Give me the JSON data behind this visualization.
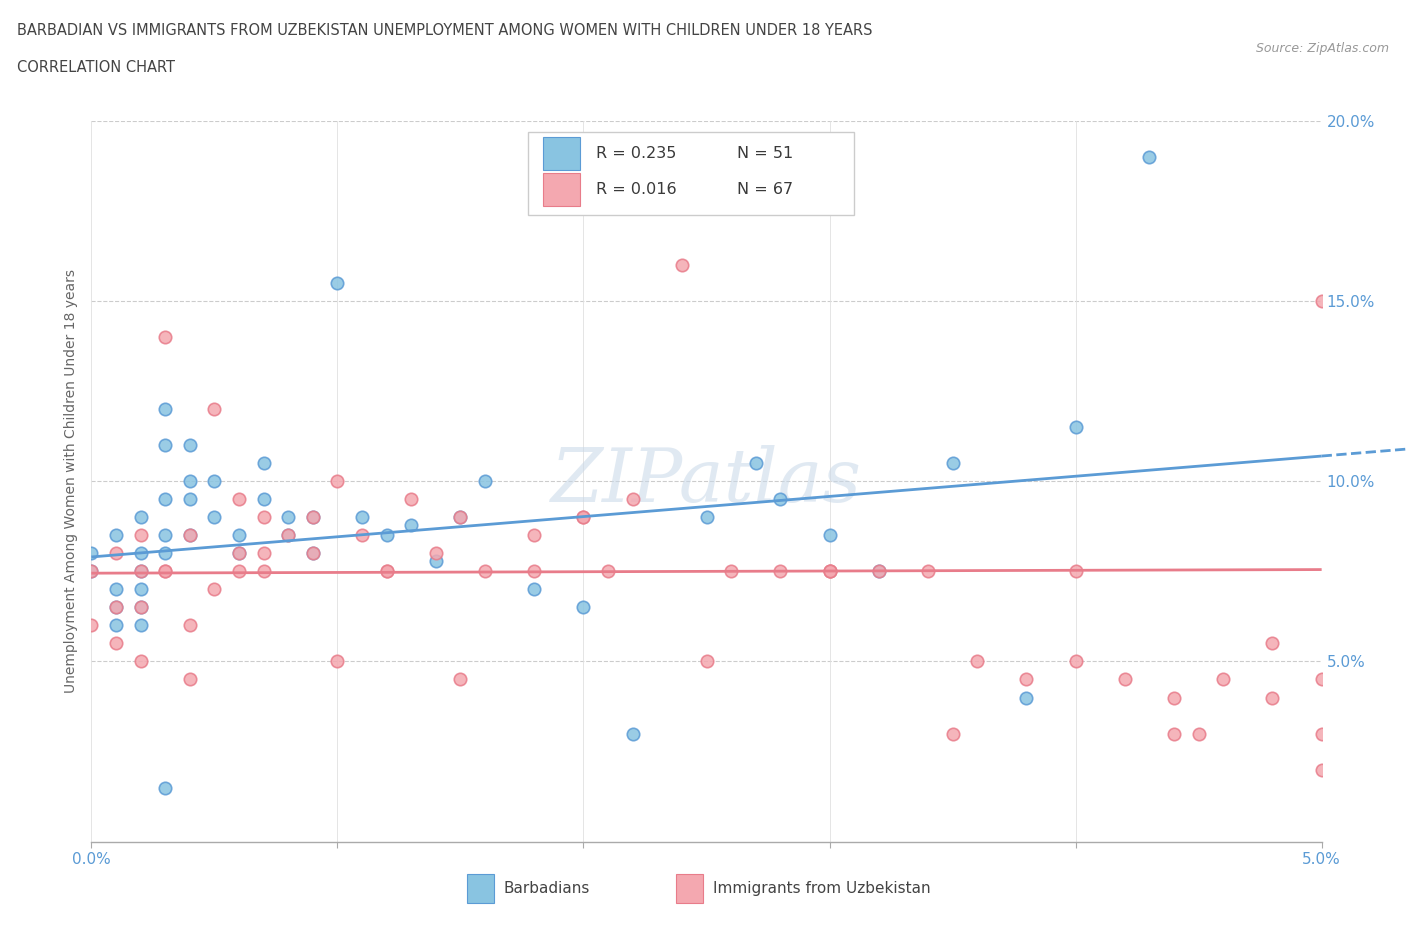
{
  "title_line1": "BARBADIAN VS IMMIGRANTS FROM UZBEKISTAN UNEMPLOYMENT AMONG WOMEN WITH CHILDREN UNDER 18 YEARS",
  "title_line2": "CORRELATION CHART",
  "source": "Source: ZipAtlas.com",
  "ylabel": "Unemployment Among Women with Children Under 18 years",
  "xlim": [
    0.0,
    0.05
  ],
  "ylim": [
    0.0,
    0.2
  ],
  "yticks": [
    0.0,
    0.05,
    0.1,
    0.15,
    0.2
  ],
  "ytick_labels": [
    "",
    "5.0%",
    "10.0%",
    "15.0%",
    "20.0%"
  ],
  "xticks": [
    0.0,
    0.01,
    0.02,
    0.03,
    0.04,
    0.05
  ],
  "xtick_labels": [
    "0.0%",
    "",
    "",
    "",
    "",
    "5.0%"
  ],
  "color_barbadian": "#89c4e1",
  "color_uzbekistan": "#f4a8b0",
  "color_barbadian_edge": "#5b9bd5",
  "color_uzbekistan_edge": "#e87c8a",
  "legend_R_barbadian": "R = 0.235",
  "legend_N_barbadian": "N = 51",
  "legend_R_uzbekistan": "R = 0.016",
  "legend_N_uzbekistan": "N = 67",
  "legend_label_barbadian": "Barbadians",
  "legend_label_uzbekistan": "Immigrants from Uzbekistan",
  "watermark": "ZIPatlas",
  "trend_blue_x0": 0.0,
  "trend_blue_x1": 0.05,
  "trend_blue_y0": 0.079,
  "trend_blue_y1": 0.107,
  "trend_pink_x0": 0.0,
  "trend_pink_x1": 0.05,
  "trend_pink_y0": 0.0745,
  "trend_pink_y1": 0.0755,
  "barbadian_x": [
    0.0,
    0.0,
    0.001,
    0.001,
    0.001,
    0.001,
    0.002,
    0.002,
    0.002,
    0.002,
    0.002,
    0.002,
    0.003,
    0.003,
    0.003,
    0.003,
    0.003,
    0.004,
    0.004,
    0.004,
    0.004,
    0.005,
    0.005,
    0.006,
    0.006,
    0.007,
    0.007,
    0.008,
    0.008,
    0.009,
    0.009,
    0.01,
    0.011,
    0.012,
    0.013,
    0.014,
    0.015,
    0.016,
    0.018,
    0.02,
    0.022,
    0.025,
    0.027,
    0.028,
    0.03,
    0.032,
    0.035,
    0.038,
    0.04,
    0.043,
    0.003
  ],
  "barbadian_y": [
    0.075,
    0.08,
    0.085,
    0.07,
    0.065,
    0.06,
    0.09,
    0.08,
    0.075,
    0.07,
    0.065,
    0.06,
    0.12,
    0.11,
    0.095,
    0.085,
    0.08,
    0.11,
    0.1,
    0.095,
    0.085,
    0.1,
    0.09,
    0.085,
    0.08,
    0.105,
    0.095,
    0.09,
    0.085,
    0.09,
    0.08,
    0.155,
    0.09,
    0.085,
    0.088,
    0.078,
    0.09,
    0.1,
    0.07,
    0.065,
    0.03,
    0.09,
    0.105,
    0.095,
    0.085,
    0.075,
    0.105,
    0.04,
    0.115,
    0.19,
    0.015
  ],
  "uzbekistan_x": [
    0.0,
    0.0,
    0.001,
    0.001,
    0.002,
    0.002,
    0.002,
    0.003,
    0.003,
    0.004,
    0.004,
    0.005,
    0.005,
    0.006,
    0.006,
    0.007,
    0.007,
    0.008,
    0.009,
    0.01,
    0.011,
    0.012,
    0.013,
    0.014,
    0.015,
    0.016,
    0.018,
    0.02,
    0.022,
    0.024,
    0.026,
    0.028,
    0.03,
    0.032,
    0.034,
    0.036,
    0.038,
    0.04,
    0.042,
    0.044,
    0.046,
    0.048,
    0.05,
    0.05,
    0.05,
    0.003,
    0.006,
    0.009,
    0.012,
    0.015,
    0.018,
    0.021,
    0.025,
    0.03,
    0.035,
    0.04,
    0.044,
    0.048,
    0.001,
    0.002,
    0.004,
    0.007,
    0.01,
    0.02,
    0.03,
    0.045,
    0.05
  ],
  "uzbekistan_y": [
    0.075,
    0.06,
    0.08,
    0.065,
    0.085,
    0.075,
    0.065,
    0.14,
    0.075,
    0.085,
    0.06,
    0.12,
    0.07,
    0.095,
    0.08,
    0.09,
    0.08,
    0.085,
    0.08,
    0.1,
    0.085,
    0.075,
    0.095,
    0.08,
    0.09,
    0.075,
    0.075,
    0.09,
    0.095,
    0.16,
    0.075,
    0.075,
    0.075,
    0.075,
    0.075,
    0.05,
    0.045,
    0.05,
    0.045,
    0.04,
    0.045,
    0.055,
    0.15,
    0.045,
    0.02,
    0.075,
    0.075,
    0.09,
    0.075,
    0.045,
    0.085,
    0.075,
    0.05,
    0.075,
    0.03,
    0.075,
    0.03,
    0.04,
    0.055,
    0.05,
    0.045,
    0.075,
    0.05,
    0.09,
    0.075,
    0.03,
    0.03
  ]
}
